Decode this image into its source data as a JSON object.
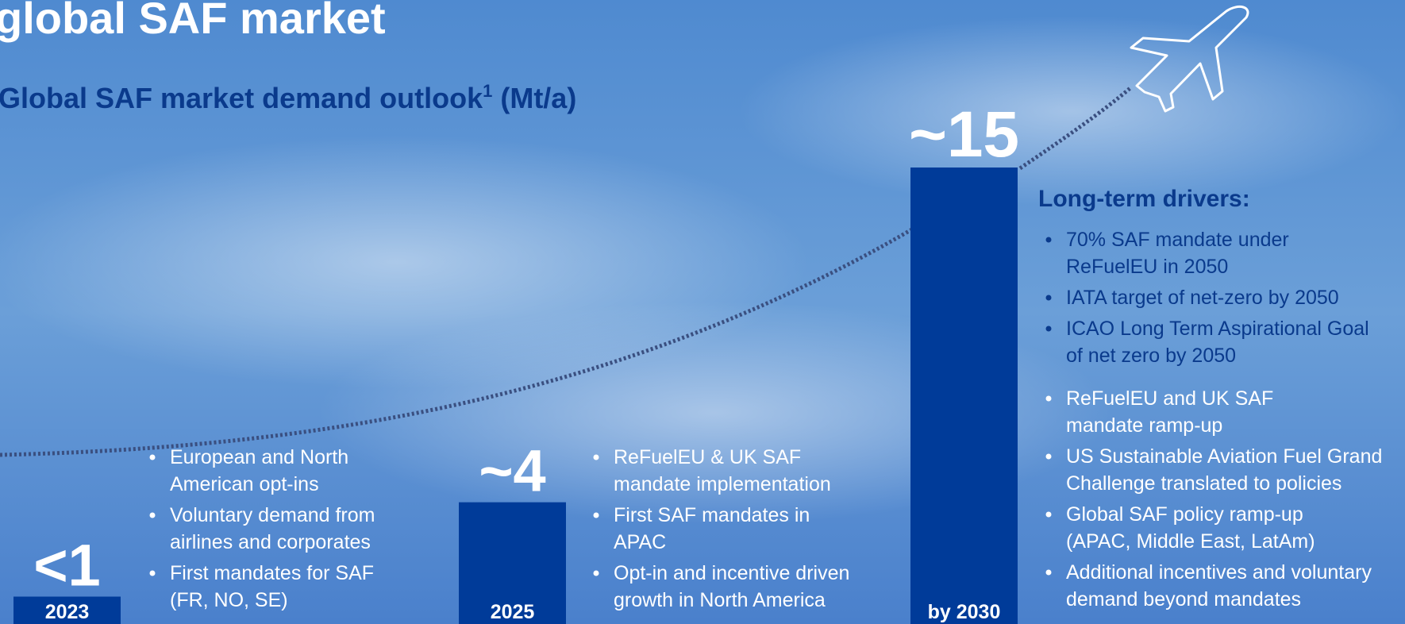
{
  "chart_data": {
    "type": "bar",
    "title": "global SAF market",
    "subtitle": "Global SAF market demand outlook",
    "subtitle_footnote": "1",
    "unit": "(Mt/a)",
    "categories": [
      "2023",
      "2025",
      "by 2030"
    ],
    "values": [
      0.9,
      4,
      15
    ],
    "value_labels": [
      "<1",
      "~4",
      "~15"
    ],
    "color": "#003b99",
    "notes": [
      [
        [
          "European and North",
          "American opt-ins"
        ],
        [
          "Voluntary demand from",
          "airlines and corporates"
        ],
        [
          "First mandates for SAF",
          "(FR, NO, SE)"
        ]
      ],
      [
        [
          "ReFuelEU & UK SAF",
          "mandate implementation"
        ],
        [
          "First SAF mandates in",
          "APAC"
        ],
        [
          "Opt-in and incentive driven",
          "growth in North America"
        ]
      ],
      [
        [
          "ReFuelEU and UK SAF",
          "mandate ramp-up"
        ],
        [
          "US Sustainable Aviation Fuel Grand",
          "Challenge translated to policies"
        ],
        [
          "Global SAF policy ramp-up",
          "(APAC, Middle East, LatAm)"
        ],
        [
          "Additional incentives and voluntary",
          "demand beyond mandates"
        ]
      ]
    ],
    "drivers": {
      "title": "Long-term drivers:",
      "items": [
        [
          "70% SAF mandate under",
          "ReFuelEU in 2050"
        ],
        [
          "IATA target of net-zero by 2050"
        ],
        [
          "ICAO Long Term Aspirational Goal",
          "of net zero by 2050"
        ]
      ]
    }
  }
}
